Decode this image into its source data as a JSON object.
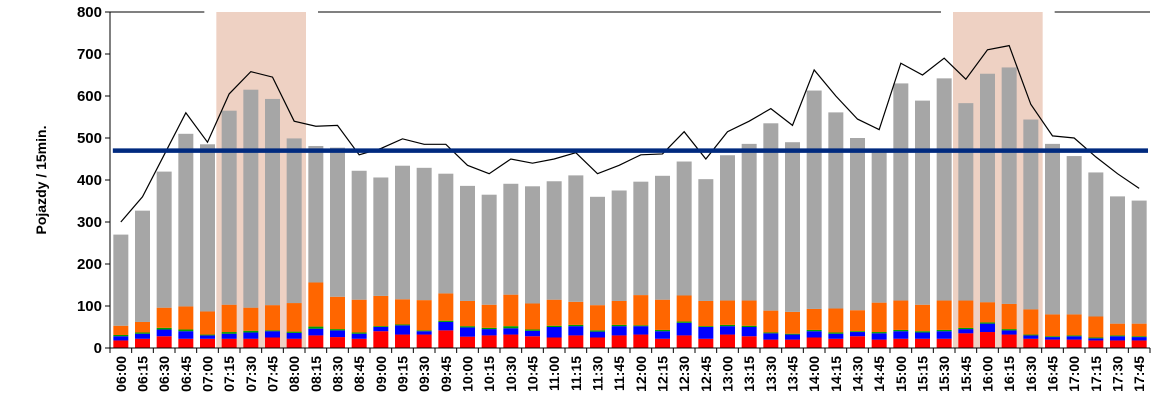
{
  "chart_data": {
    "type": "bar",
    "ylabel": "Pojazdy / 15min.",
    "ylim": [
      0,
      800
    ],
    "yticks": [
      "0",
      "100",
      "200",
      "300",
      "400",
      "500",
      "600",
      "700",
      "800"
    ],
    "categories": [
      "06:00",
      "06:15",
      "06:30",
      "06:45",
      "07:00",
      "07:15",
      "07:30",
      "07:45",
      "08:00",
      "08:15",
      "08:30",
      "08:45",
      "09:00",
      "09:15",
      "09:30",
      "09:45",
      "10:00",
      "10:15",
      "10:30",
      "10:45",
      "11:00",
      "11:15",
      "11:30",
      "11:45",
      "12:00",
      "12:15",
      "12:30",
      "12:45",
      "13:00",
      "13:15",
      "13:30",
      "13:45",
      "14:00",
      "14:15",
      "14:30",
      "14:45",
      "15:00",
      "15:15",
      "15:30",
      "15:45",
      "16:00",
      "16:15",
      "16:30",
      "16:45",
      "17:00",
      "17:15",
      "17:30",
      "17:45"
    ],
    "stacked_series": [
      {
        "color": "#ff0000",
        "values": [
          18,
          22,
          28,
          22,
          22,
          22,
          22,
          25,
          22,
          30,
          26,
          22,
          40,
          32,
          32,
          42,
          27,
          30,
          32,
          28,
          25,
          30,
          25,
          30,
          32,
          22,
          30,
          22,
          32,
          28,
          20,
          20,
          25,
          22,
          28,
          20,
          22,
          22,
          22,
          35,
          38,
          32,
          22,
          20,
          20,
          18,
          18,
          18
        ]
      },
      {
        "color": "#0000ff",
        "values": [
          10,
          12,
          16,
          18,
          8,
          12,
          15,
          15,
          14,
          16,
          16,
          12,
          10,
          22,
          8,
          20,
          22,
          15,
          15,
          13,
          25,
          22,
          14,
          22,
          20,
          18,
          30,
          28,
          20,
          22,
          15,
          12,
          15,
          12,
          10,
          15,
          18,
          15,
          18,
          10,
          20,
          10,
          8,
          6,
          8,
          5,
          10,
          8
        ]
      },
      {
        "color": "#00a000",
        "values": [
          3,
          3,
          4,
          4,
          2,
          4,
          4,
          2,
          3,
          5,
          3,
          3,
          2,
          2,
          2,
          3,
          3,
          3,
          5,
          3,
          3,
          3,
          3,
          3,
          2,
          3,
          3,
          2,
          3,
          3,
          2,
          2,
          3,
          3,
          2,
          3,
          3,
          3,
          3,
          3,
          3,
          3,
          2,
          2,
          2,
          2,
          2,
          2
        ]
      },
      {
        "color": "#ff6600",
        "values": [
          22,
          25,
          48,
          55,
          55,
          65,
          55,
          60,
          68,
          105,
          77,
          78,
          72,
          60,
          72,
          65,
          60,
          55,
          75,
          62,
          62,
          55,
          60,
          57,
          72,
          72,
          62,
          60,
          58,
          60,
          52,
          52,
          50,
          57,
          50,
          70,
          70,
          63,
          70,
          65,
          48,
          60,
          60,
          52,
          50,
          50,
          28,
          30
        ]
      },
      {
        "color": "#a6a6a6",
        "values": [
          217,
          265,
          324,
          411,
          398,
          462,
          519,
          491,
          392,
          325,
          355,
          307,
          282,
          318,
          315,
          285,
          274,
          262,
          264,
          279,
          282,
          301,
          258,
          263,
          270,
          295,
          319,
          290,
          346,
          373,
          446,
          404,
          520,
          467,
          410,
          367,
          517,
          486,
          529,
          470,
          544,
          563,
          452,
          406,
          377,
          343,
          303,
          293
        ]
      }
    ],
    "line": {
      "color": "#000000",
      "values": [
        300,
        360,
        460,
        560,
        490,
        605,
        658,
        645,
        540,
        528,
        530,
        460,
        475,
        498,
        485,
        485,
        435,
        415,
        450,
        440,
        450,
        465,
        415,
        435,
        460,
        462,
        515,
        450,
        515,
        540,
        570,
        530,
        662,
        600,
        545,
        520,
        678,
        650,
        690,
        640,
        710,
        720,
        580,
        505,
        500,
        455,
        415,
        380
      ]
    },
    "reference_line": {
      "color": "#002a7f",
      "value": 470
    },
    "highlight_color": "#ebc9b9"
  }
}
